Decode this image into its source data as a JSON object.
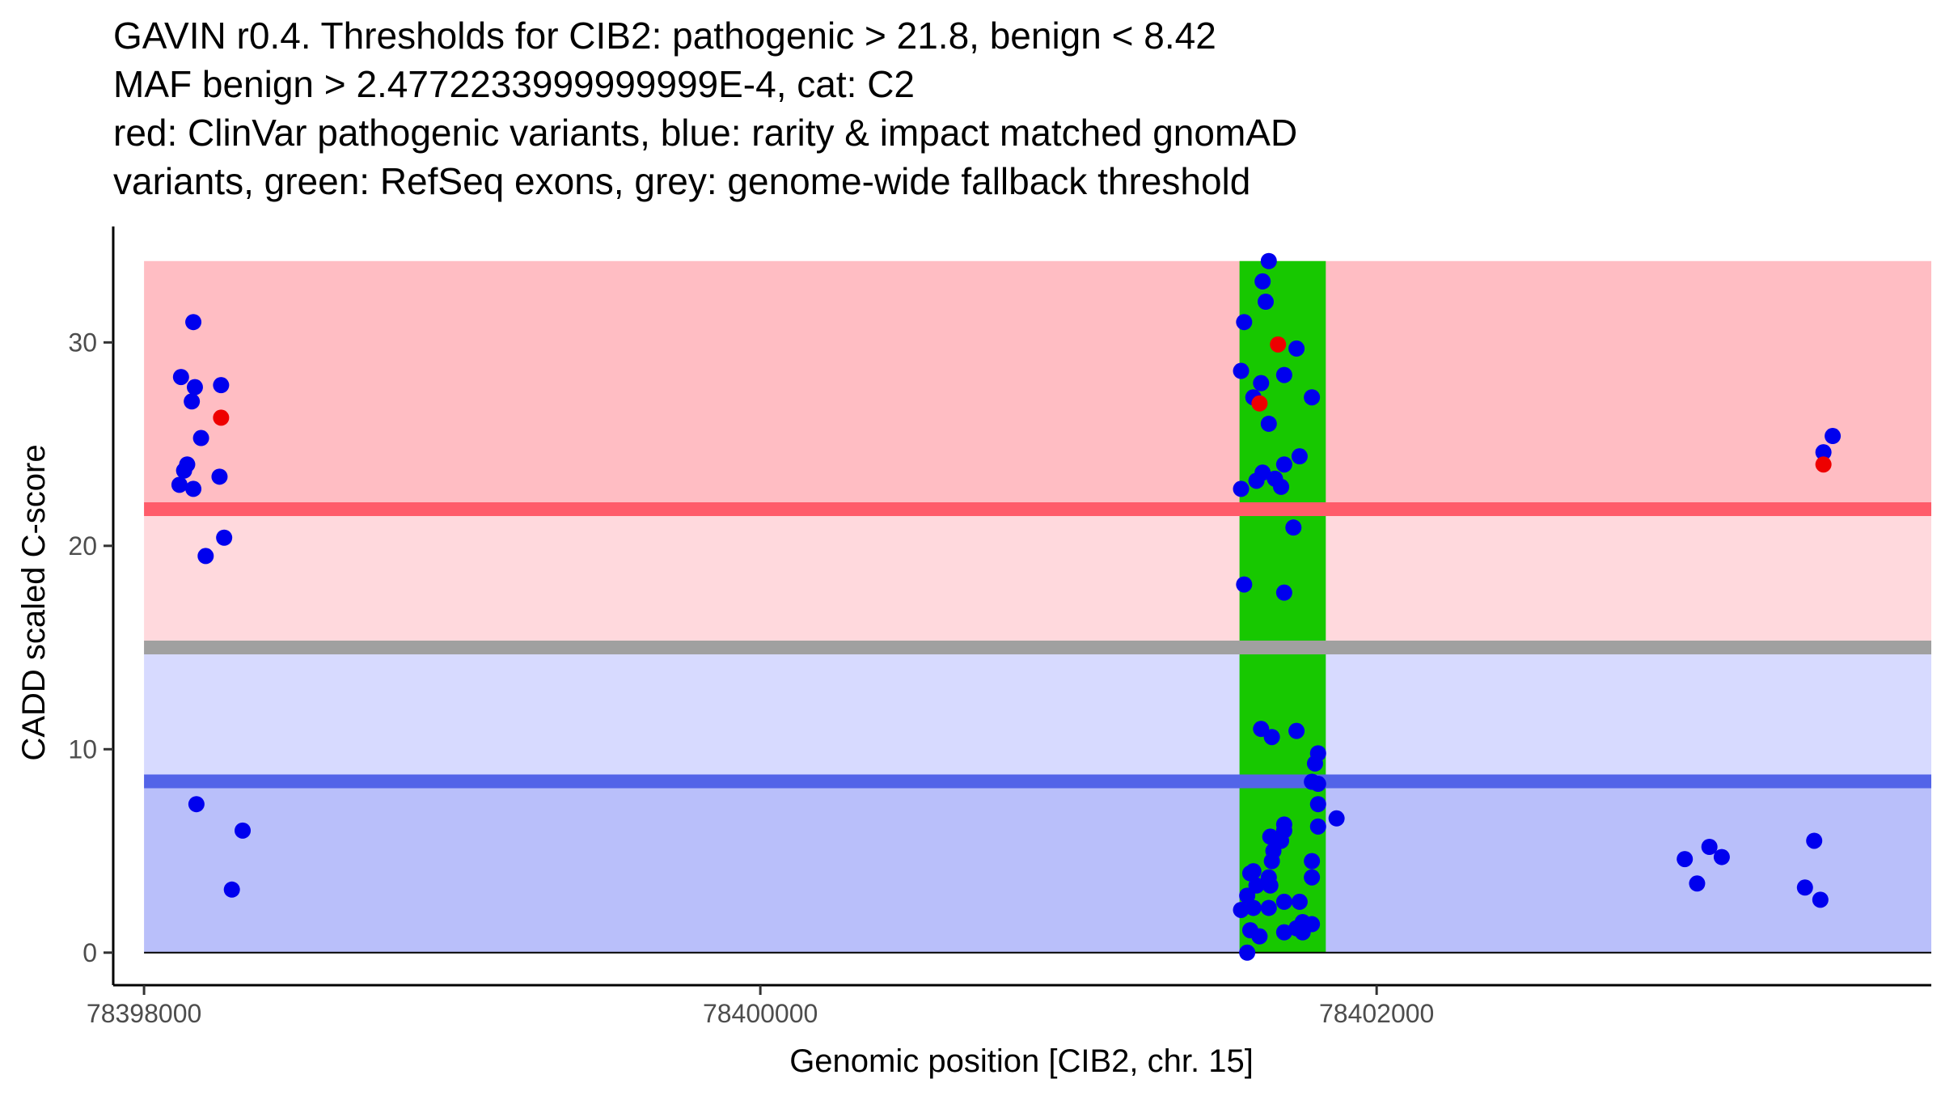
{
  "chart_data": {
    "type": "scatter",
    "title_lines": [
      "GAVIN r0.4. Thresholds for CIB2: pathogenic > 21.8, benign < 8.42",
      "MAF benign > 2.4772233999999999E-4, cat: C2",
      "red: ClinVar pathogenic variants, blue: rarity & impact matched gnomAD",
      "variants, green: RefSeq exons, grey: genome-wide fallback threshold"
    ],
    "xlabel": "Genomic position [CIB2, chr. 15]",
    "ylabel": "CADD scaled C-score",
    "xlim": [
      78397900,
      78403800
    ],
    "ylim": [
      -1.6,
      35.7
    ],
    "x_ticks": [
      {
        "value": 78398000,
        "label": "78398000"
      },
      {
        "value": 78400000,
        "label": "78400000"
      },
      {
        "value": 78402000,
        "label": "78402000"
      }
    ],
    "y_ticks": [
      {
        "value": 0,
        "label": "0"
      },
      {
        "value": 10,
        "label": "10"
      },
      {
        "value": 20,
        "label": "20"
      },
      {
        "value": 30,
        "label": "30"
      }
    ],
    "thresholds": {
      "pathogenic": 21.8,
      "fallback": 15.0,
      "benign": 8.42,
      "max": 34.0
    },
    "colors": {
      "pathogenic_zone": "#ffbdc3",
      "intermediate_patho_zone": "#ffd9dd",
      "intermediate_benign_zone": "#d7daff",
      "benign_zone": "#b9bffa",
      "pathogenic_line": "#ff5c6a",
      "fallback_line": "#a0a0a0",
      "benign_line": "#5364e8",
      "exon": "#17c800",
      "gnomad_point": "#0000ee",
      "clinvar_point": "#ee0000"
    },
    "exons": [
      {
        "start": 78401555,
        "end": 78401835
      }
    ],
    "series": [
      {
        "name": "gnomAD",
        "color": "#0000ee",
        "points": [
          [
            78398160,
            31.0
          ],
          [
            78398120,
            28.3
          ],
          [
            78398165,
            27.8
          ],
          [
            78398250,
            27.9
          ],
          [
            78398155,
            27.1
          ],
          [
            78398185,
            25.3
          ],
          [
            78398140,
            24.0
          ],
          [
            78398130,
            23.7
          ],
          [
            78398245,
            23.4
          ],
          [
            78398115,
            23.0
          ],
          [
            78398160,
            22.8
          ],
          [
            78398260,
            20.4
          ],
          [
            78398200,
            19.5
          ],
          [
            78398170,
            7.3
          ],
          [
            78398320,
            6.0
          ],
          [
            78398285,
            3.1
          ],
          [
            78401650,
            34.0
          ],
          [
            78401630,
            33.0
          ],
          [
            78401640,
            32.0
          ],
          [
            78401570,
            31.0
          ],
          [
            78401740,
            29.7
          ],
          [
            78401560,
            28.6
          ],
          [
            78401700,
            28.4
          ],
          [
            78401625,
            28.0
          ],
          [
            78401600,
            27.3
          ],
          [
            78401790,
            27.3
          ],
          [
            78401650,
            26.0
          ],
          [
            78401750,
            24.4
          ],
          [
            78401700,
            24.0
          ],
          [
            78401630,
            23.6
          ],
          [
            78401670,
            23.3
          ],
          [
            78401610,
            23.2
          ],
          [
            78401560,
            22.8
          ],
          [
            78401690,
            22.9
          ],
          [
            78401730,
            20.9
          ],
          [
            78401570,
            18.1
          ],
          [
            78401700,
            17.7
          ],
          [
            78401625,
            11.0
          ],
          [
            78401660,
            10.6
          ],
          [
            78401740,
            10.9
          ],
          [
            78401810,
            9.8
          ],
          [
            78401800,
            9.3
          ],
          [
            78401790,
            8.4
          ],
          [
            78401810,
            8.3
          ],
          [
            78401810,
            7.3
          ],
          [
            78401870,
            6.6
          ],
          [
            78401700,
            6.3
          ],
          [
            78401810,
            6.2
          ],
          [
            78401700,
            6.0
          ],
          [
            78401655,
            5.7
          ],
          [
            78401690,
            5.5
          ],
          [
            78401665,
            5.0
          ],
          [
            78401660,
            4.5
          ],
          [
            78401790,
            4.5
          ],
          [
            78401650,
            3.7
          ],
          [
            78401790,
            3.7
          ],
          [
            78401655,
            3.3
          ],
          [
            78401590,
            3.9
          ],
          [
            78401600,
            4.0
          ],
          [
            78401610,
            3.3
          ],
          [
            78401580,
            2.8
          ],
          [
            78401560,
            2.1
          ],
          [
            78401600,
            2.2
          ],
          [
            78401700,
            2.5
          ],
          [
            78401750,
            2.5
          ],
          [
            78401650,
            2.2
          ],
          [
            78401760,
            1.5
          ],
          [
            78401790,
            1.4
          ],
          [
            78401700,
            1.0
          ],
          [
            78401740,
            1.2
          ],
          [
            78401590,
            1.1
          ],
          [
            78401620,
            0.8
          ],
          [
            78401760,
            1.0
          ],
          [
            78401580,
            0.0
          ],
          [
            78403000,
            4.6
          ],
          [
            78403080,
            5.2
          ],
          [
            78403120,
            4.7
          ],
          [
            78403040,
            3.4
          ],
          [
            78403420,
            5.5
          ],
          [
            78403390,
            3.2
          ],
          [
            78403440,
            2.6
          ],
          [
            78403450,
            24.6
          ],
          [
            78403480,
            25.4
          ]
        ]
      },
      {
        "name": "ClinVar",
        "color": "#ee0000",
        "points": [
          [
            78398250,
            26.3
          ],
          [
            78401680,
            29.9
          ],
          [
            78401620,
            27.0
          ],
          [
            78403450,
            24.0
          ]
        ]
      }
    ]
  }
}
